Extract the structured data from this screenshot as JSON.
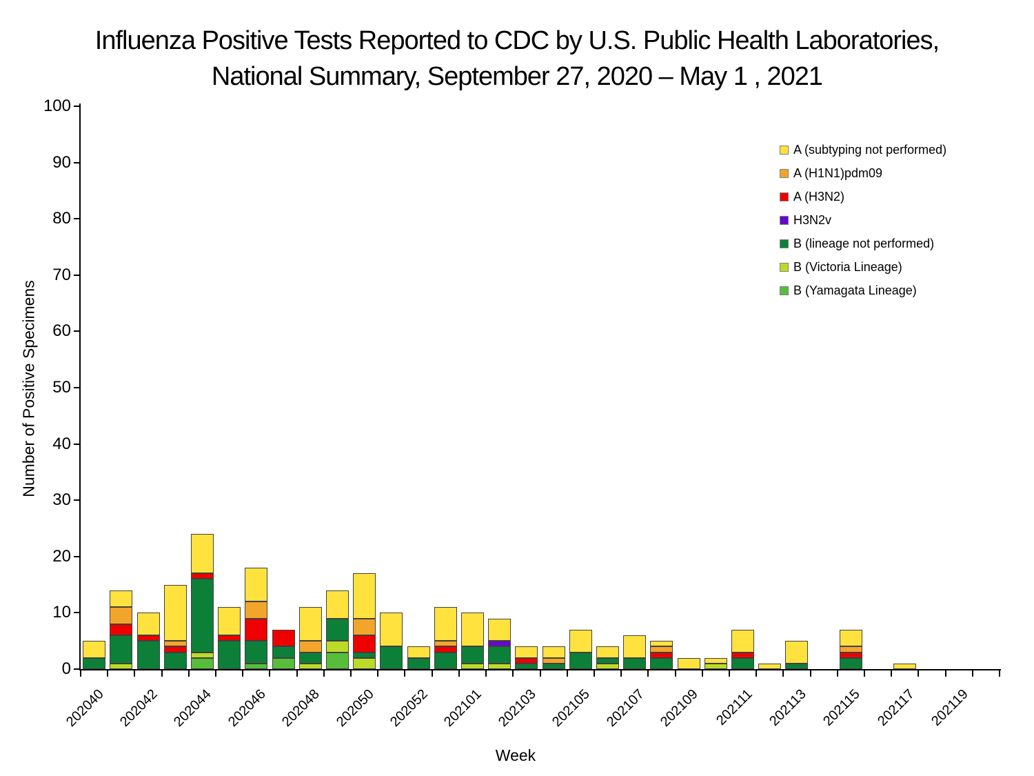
{
  "title": {
    "line1": "Influenza Positive Tests Reported to CDC by U.S. Public Health Laboratories,",
    "line2": "National Summary, September 27, 2020 – May 1 , 2021"
  },
  "y_axis": {
    "title": "Number of Positive Specimens",
    "ticks": [
      0,
      10,
      20,
      30,
      40,
      50,
      60,
      70,
      80,
      90,
      100
    ],
    "min": 0,
    "max": 100
  },
  "x_axis": {
    "title": "Week",
    "labeled_ticks": [
      "202040",
      "202042",
      "202044",
      "202046",
      "202048",
      "202050",
      "202052",
      "202101",
      "202103",
      "202105",
      "202107",
      "202109",
      "202111",
      "202113",
      "202115",
      "202117",
      "202119"
    ]
  },
  "legend": {
    "position": "upper-right",
    "entries": [
      {
        "label": "A (subtyping not performed)",
        "color": "#FFE23D"
      },
      {
        "label": "A (H1N1)pdm09",
        "color": "#F2A52B"
      },
      {
        "label": "A (H3N2)",
        "color": "#EE0000"
      },
      {
        "label": "H3N2v",
        "color": "#6608CF"
      },
      {
        "label": "B (lineage not performed)",
        "color": "#0C8038"
      },
      {
        "label": "B (Victoria Lineage)",
        "color": "#BCDB29"
      },
      {
        "label": "B (Yamagata Lineage)",
        "color": "#56BE3B"
      }
    ]
  },
  "chart_data": {
    "type": "bar",
    "stacked": true,
    "title": "Influenza Positive Tests Reported to CDC by U.S. Public Health Laboratories, National Summary, September 27, 2020 – May 1 , 2021",
    "xlabel": "Week",
    "ylabel": "Number of Positive Specimens",
    "ylim": [
      0,
      100
    ],
    "grid": false,
    "categories": [
      "202040",
      "202041",
      "202042",
      "202043",
      "202044",
      "202045",
      "202046",
      "202047",
      "202048",
      "202049",
      "202050",
      "202051",
      "202052",
      "202053",
      "202101",
      "202102",
      "202103",
      "202104",
      "202105",
      "202106",
      "202107",
      "202108",
      "202109",
      "202110",
      "202111",
      "202112",
      "202113",
      "202114",
      "202115",
      "202116",
      "202117",
      "202118",
      "202119",
      "202120"
    ],
    "stack_order_bottom_to_top": [
      "B (Yamagata Lineage)",
      "B (Victoria Lineage)",
      "B (lineage not performed)",
      "H3N2v",
      "A (H3N2)",
      "A (H1N1)pdm09",
      "A (subtyping not performed)"
    ],
    "series": [
      {
        "name": "A (subtyping not performed)",
        "color": "#FFE23D",
        "values": [
          3,
          3,
          4,
          10,
          7,
          5,
          6,
          0,
          6,
          5,
          8,
          6,
          2,
          6,
          6,
          4,
          2,
          2,
          4,
          2,
          4,
          1,
          2,
          1,
          4,
          1,
          4,
          0,
          3,
          0,
          1,
          0,
          0,
          0
        ]
      },
      {
        "name": "A (H1N1)pdm09",
        "color": "#F2A52B",
        "values": [
          0,
          3,
          0,
          1,
          0,
          0,
          3,
          0,
          2,
          0,
          3,
          0,
          0,
          1,
          0,
          0,
          0,
          1,
          0,
          0,
          0,
          1,
          0,
          0,
          0,
          0,
          0,
          0,
          1,
          0,
          0,
          0,
          0,
          0
        ]
      },
      {
        "name": "A (H3N2)",
        "color": "#EE0000",
        "values": [
          0,
          2,
          1,
          1,
          1,
          1,
          4,
          3,
          0,
          0,
          3,
          0,
          0,
          1,
          0,
          0,
          1,
          0,
          0,
          0,
          0,
          1,
          0,
          0,
          1,
          0,
          0,
          0,
          1,
          0,
          0,
          0,
          0,
          0
        ]
      },
      {
        "name": "H3N2v",
        "color": "#6608CF",
        "values": [
          0,
          0,
          0,
          0,
          0,
          0,
          0,
          0,
          0,
          0,
          0,
          0,
          0,
          0,
          0,
          1,
          0,
          0,
          0,
          0,
          0,
          0,
          0,
          0,
          0,
          0,
          0,
          0,
          0,
          0,
          0,
          0,
          0,
          0
        ]
      },
      {
        "name": "B (lineage not performed)",
        "color": "#0C8038",
        "values": [
          2,
          5,
          5,
          3,
          13,
          5,
          4,
          2,
          2,
          4,
          1,
          4,
          2,
          3,
          3,
          3,
          1,
          1,
          3,
          1,
          2,
          2,
          0,
          0,
          2,
          0,
          1,
          0,
          2,
          0,
          0,
          0,
          0,
          0
        ]
      },
      {
        "name": "B (Victoria Lineage)",
        "color": "#BCDB29",
        "values": [
          0,
          1,
          0,
          0,
          1,
          0,
          0,
          0,
          1,
          2,
          2,
          0,
          0,
          0,
          1,
          1,
          0,
          0,
          0,
          1,
          0,
          0,
          0,
          1,
          0,
          0,
          0,
          0,
          0,
          0,
          0,
          0,
          0,
          0
        ]
      },
      {
        "name": "B (Yamagata Lineage)",
        "color": "#56BE3B",
        "values": [
          0,
          0,
          0,
          0,
          2,
          0,
          1,
          2,
          0,
          3,
          0,
          0,
          0,
          0,
          0,
          0,
          0,
          0,
          0,
          0,
          0,
          0,
          0,
          0,
          0,
          0,
          0,
          0,
          0,
          0,
          0,
          0,
          0,
          0
        ]
      }
    ]
  }
}
